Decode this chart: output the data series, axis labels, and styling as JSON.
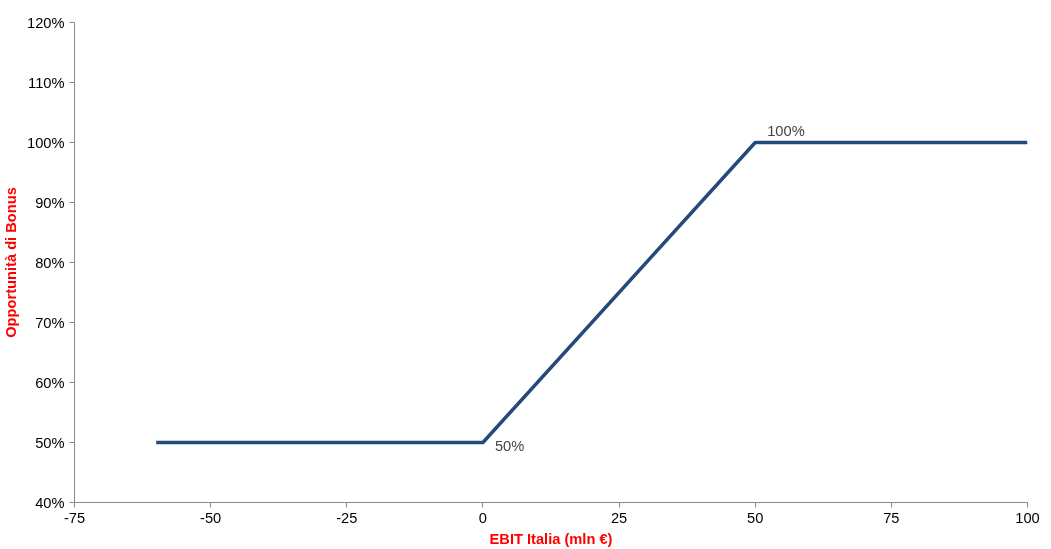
{
  "chart_data": {
    "type": "line",
    "xlabel": "EBIT Italia (mln €)",
    "ylabel": "Opportunità di Bonus",
    "x": [
      -60,
      0,
      50,
      100
    ],
    "series": [
      {
        "color": "#244a7c",
        "values": [
          50,
          50,
          100,
          100
        ],
        "value_labels": [
          null,
          "50%",
          "100%",
          null
        ]
      }
    ],
    "xlim": [
      -75,
      100
    ],
    "xticks": [
      -75,
      -50,
      -25,
      0,
      25,
      50,
      75,
      100
    ],
    "ylim": [
      40,
      120
    ],
    "yticks": [
      {
        "value": 40,
        "label": "40%"
      },
      {
        "value": 50,
        "label": "50%"
      },
      {
        "value": 60,
        "label": "60%"
      },
      {
        "value": 70,
        "label": "70%"
      },
      {
        "value": 80,
        "label": "80%"
      },
      {
        "value": 90,
        "label": "90%"
      },
      {
        "value": 100,
        "label": "100%"
      },
      {
        "value": 110,
        "label": "110%"
      },
      {
        "value": 120,
        "label": "120%"
      }
    ],
    "grid": false,
    "marker": "none",
    "line_style": "solid"
  }
}
